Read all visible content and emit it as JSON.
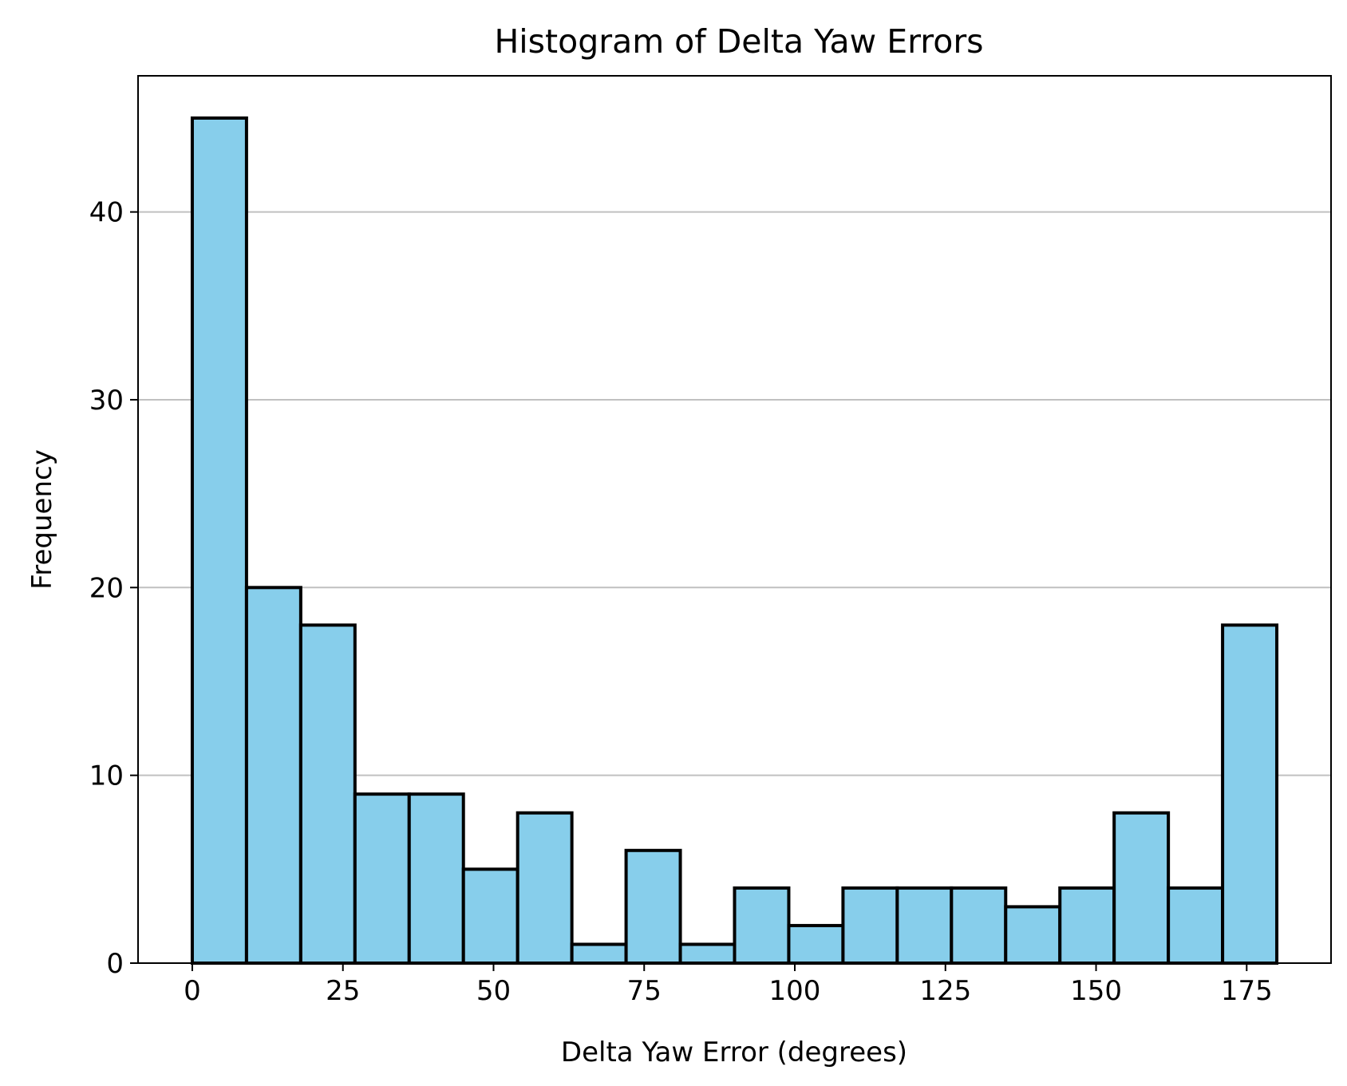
{
  "chart_data": {
    "type": "bar",
    "title": "Histogram of Delta Yaw Errors",
    "xlabel": "Delta Yaw Error (degrees)",
    "ylabel": "Frequency",
    "xlim": [
      -9,
      189
    ],
    "ylim": [
      0,
      47.25
    ],
    "grid": "y",
    "bin_edges": [
      0,
      9,
      18,
      27,
      36,
      45,
      54,
      63,
      72,
      81,
      90,
      99,
      108,
      117,
      126,
      135,
      144,
      153,
      162,
      171,
      180
    ],
    "values": [
      45,
      20,
      18,
      9,
      9,
      5,
      8,
      1,
      6,
      1,
      4,
      2,
      4,
      4,
      4,
      3,
      4,
      8,
      4,
      18
    ],
    "x_ticks": [
      0,
      25,
      50,
      75,
      100,
      125,
      150,
      175
    ],
    "x_tick_labels": [
      "0",
      "25",
      "50",
      "75",
      "100",
      "125",
      "150",
      "175"
    ],
    "y_ticks": [
      0,
      10,
      20,
      30,
      40
    ],
    "y_tick_labels": [
      "0",
      "10",
      "20",
      "30",
      "40"
    ],
    "bar_color": "#87ceeb",
    "edge_color": "#000000",
    "grid_color": "#c0c0c0"
  }
}
